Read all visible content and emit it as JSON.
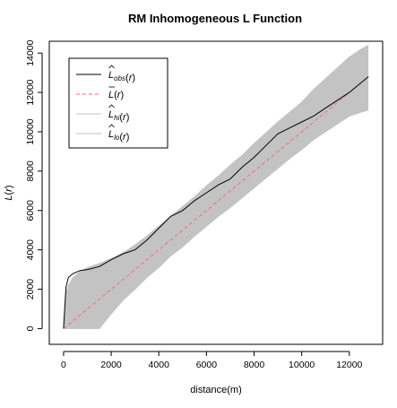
{
  "chart_data": {
    "type": "line",
    "title": "RM Inhomogeneous L Function",
    "xlabel": "distance(m)",
    "ylabel": "L(r)",
    "xlim": [
      -600,
      13400
    ],
    "ylim": [
      -800,
      14600
    ],
    "x_ticks": [
      0,
      2000,
      4000,
      6000,
      8000,
      10000,
      12000
    ],
    "y_ticks": [
      0,
      2000,
      4000,
      6000,
      8000,
      10000,
      12000,
      14000
    ],
    "x_tick_labels": [
      "0",
      "2000",
      "4000",
      "6000",
      "8000",
      "10000",
      "12000"
    ],
    "y_tick_labels": [
      "0",
      "2000",
      "4000",
      "6000",
      "8000",
      "10000",
      "12000",
      "14000"
    ],
    "grid": false,
    "legend": {
      "position": "top-left",
      "entries": [
        "L̂obs(r)",
        "L̄(r)",
        "L̂hi(r)",
        "L̂lo(r)"
      ]
    },
    "colors": {
      "observed": "#000000",
      "theoretical": "#ff6b6b",
      "envelope": "#c3c3c3"
    },
    "x": [
      0,
      100,
      200,
      400,
      700,
      1000,
      1500,
      2000,
      2500,
      3000,
      3500,
      4000,
      4500,
      5000,
      5500,
      6000,
      6500,
      7000,
      7500,
      8000,
      8500,
      9000,
      9500,
      10000,
      10500,
      11000,
      11500,
      12000,
      12500,
      12800
    ],
    "series": [
      {
        "name": "L̂obs(r)",
        "role": "observed",
        "style": "solid",
        "values": [
          0,
          2100,
          2600,
          2800,
          2950,
          3000,
          3150,
          3500,
          3800,
          4000,
          4500,
          5100,
          5700,
          6000,
          6500,
          6900,
          7300,
          7600,
          8200,
          8700,
          9300,
          9900,
          10200,
          10500,
          10800,
          11200,
          11600,
          12000,
          12500,
          12800
        ]
      },
      {
        "name": "L̄(r)",
        "role": "theoretical",
        "style": "dashed",
        "values": [
          0,
          100,
          200,
          400,
          700,
          1000,
          1500,
          2000,
          2500,
          3000,
          3500,
          4000,
          4500,
          5000,
          5500,
          6000,
          6500,
          7000,
          7500,
          8000,
          8500,
          9000,
          9500,
          10000,
          10500,
          11000,
          11500,
          12000,
          12500,
          12800
        ]
      },
      {
        "name": "L̂hi(r)",
        "role": "envelope-upper",
        "style": "band",
        "values": [
          100,
          1800,
          2200,
          2600,
          2900,
          3100,
          3300,
          3550,
          3850,
          4250,
          4700,
          5200,
          5700,
          6200,
          6700,
          7250,
          7750,
          8300,
          8800,
          9400,
          9950,
          10500,
          11000,
          11500,
          12150,
          12700,
          13250,
          13800,
          14200,
          14400
        ]
      },
      {
        "name": "L̂lo(r)",
        "role": "envelope-lower",
        "style": "band",
        "values": [
          0,
          0,
          0,
          0,
          0,
          0,
          0,
          750,
          1450,
          2000,
          2600,
          3100,
          3700,
          4150,
          4700,
          5200,
          5700,
          6150,
          6650,
          7150,
          7650,
          8150,
          8650,
          9100,
          9600,
          10000,
          10400,
          10800,
          11000,
          11100
        ]
      }
    ]
  }
}
